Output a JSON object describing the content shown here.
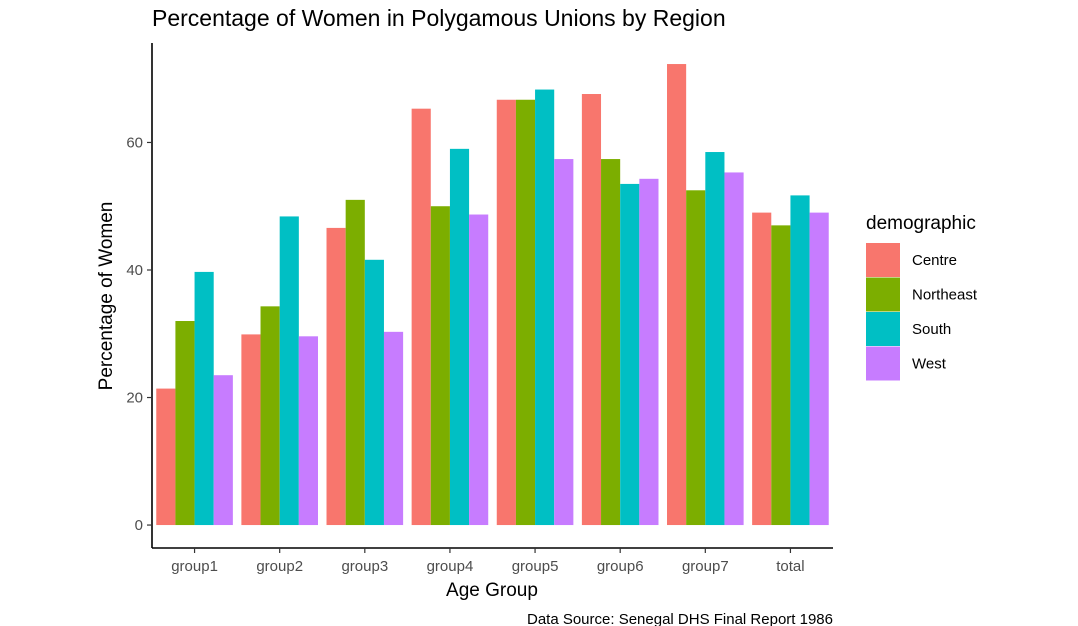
{
  "chart_data": {
    "type": "bar",
    "title": "Percentage of Women in Polygamous Unions by Region",
    "xlabel": "Age Group",
    "ylabel": "Percentage of Women",
    "caption": "Data Source: Senegal DHS Final Report 1986",
    "legend_title": "demographic",
    "legend_position": "right",
    "grid": false,
    "categories": [
      "group1",
      "group2",
      "group3",
      "group4",
      "group5",
      "group6",
      "group7",
      "total"
    ],
    "yticks": [
      0,
      20,
      40,
      60
    ],
    "ylim": [
      -3.6,
      75.6
    ],
    "series": [
      {
        "name": "Centre",
        "color": "#F8766D",
        "values": [
          21.4,
          29.9,
          46.6,
          65.3,
          66.7,
          67.6,
          72.3,
          49.0
        ]
      },
      {
        "name": "Northeast",
        "color": "#7CAE00",
        "values": [
          32.0,
          34.3,
          51.0,
          50.0,
          66.7,
          57.4,
          52.5,
          47.0
        ]
      },
      {
        "name": "South",
        "color": "#00BFC4",
        "values": [
          39.7,
          48.4,
          41.6,
          59.0,
          68.3,
          53.5,
          58.5,
          51.7
        ]
      },
      {
        "name": "West",
        "color": "#C77CFF",
        "values": [
          23.5,
          29.6,
          30.3,
          48.7,
          57.4,
          54.3,
          55.3,
          49.0
        ]
      }
    ]
  }
}
